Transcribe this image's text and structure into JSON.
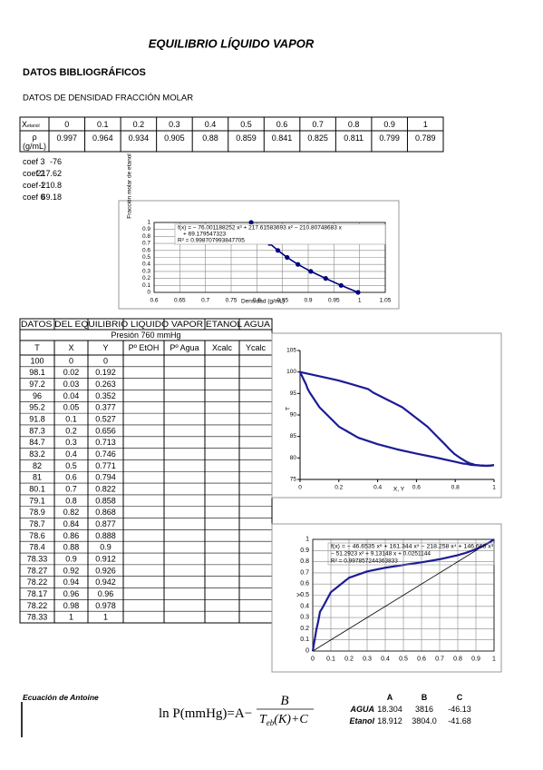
{
  "title": "EQUILIBRIO LÍQUIDO VAPOR",
  "section": "DATOS BIBLIOGRÁFICOS",
  "density": {
    "heading": "DATOS DE DENSIDAD FRACCIÓN MOLAR",
    "x_header": {
      "base": "X",
      "subscript": "etanol"
    },
    "rho_header": [
      "ρ",
      "(g/mL)"
    ],
    "x": [
      0,
      0.1,
      0.2,
      0.3,
      0.4,
      0.5,
      0.6,
      0.7,
      0.8,
      0.9,
      1
    ],
    "rho": [
      0.997,
      0.964,
      0.934,
      0.905,
      0.88,
      0.859,
      0.841,
      0.825,
      0.811,
      0.799,
      0.789
    ]
  },
  "coefficients": [
    {
      "label": "coef 3",
      "value": -76
    },
    {
      "label": "coef 2",
      "value": 217.62
    },
    {
      "label": "coef 1",
      "value": -210.8
    },
    {
      "label": "coef 0",
      "value": 69.18
    }
  ],
  "equilibrium": {
    "title": "DATOS DEL EQUILIBRIO LIQUIDO VAPOR ETANOL AGUA",
    "pressure": "Presión 760 mmHg",
    "columns": [
      "T",
      "X",
      "Y",
      "Pº EtOH",
      "Pº Agua",
      "Xcalc",
      "Ycalc"
    ],
    "rows": [
      [
        100,
        0,
        0
      ],
      [
        98.1,
        0.02,
        0.192
      ],
      [
        97.2,
        0.03,
        0.263
      ],
      [
        96,
        0.04,
        0.352
      ],
      [
        95.2,
        0.05,
        0.377
      ],
      [
        91.8,
        0.1,
        0.527
      ],
      [
        87.3,
        0.2,
        0.656
      ],
      [
        84.7,
        0.3,
        0.713
      ],
      [
        83.2,
        0.4,
        0.746
      ],
      [
        82,
        0.5,
        0.771
      ],
      [
        81,
        0.6,
        0.794
      ],
      [
        80.1,
        0.7,
        0.822
      ],
      [
        79.1,
        0.8,
        0.858
      ],
      [
        78.9,
        0.82,
        0.868
      ],
      [
        78.7,
        0.84,
        0.877
      ],
      [
        78.6,
        0.86,
        0.888
      ],
      [
        78.4,
        0.88,
        0.9
      ],
      [
        78.33,
        0.9,
        0.912
      ],
      [
        78.27,
        0.92,
        0.926
      ],
      [
        78.22,
        0.94,
        0.942
      ],
      [
        78.17,
        0.96,
        0.96
      ],
      [
        78.22,
        0.98,
        0.978
      ],
      [
        78.33,
        1,
        1
      ]
    ]
  },
  "chart_data": [
    {
      "type": "scatter",
      "x_label": "Densidad (g/mL)",
      "y_label": "Fracción molar de etanol",
      "color": "#000080",
      "x": [
        0.997,
        0.964,
        0.934,
        0.905,
        0.88,
        0.859,
        0.841,
        0.825,
        0.811,
        0.799,
        0.789
      ],
      "values": [
        0,
        0.1,
        0.2,
        0.3,
        0.4,
        0.5,
        0.6,
        0.7,
        0.8,
        0.9,
        1
      ],
      "xlim": [
        0.6,
        1.05
      ],
      "xticks": [
        0.6,
        0.65,
        0.7,
        0.75,
        0.8,
        0.85,
        0.9,
        0.95,
        1,
        1.05
      ],
      "ylim": [
        0,
        1
      ],
      "yticks": [
        0,
        0.1,
        0.2,
        0.3,
        0.4,
        0.5,
        0.6,
        0.7,
        0.8,
        0.9,
        1
      ],
      "grid": true,
      "annotation": [
        "f(x) = − 76.001188252 x³ + 217.61583693 x² − 210.80748683 x",
        "+ 69.179547323",
        "R² = 0.998707993847705"
      ]
    },
    {
      "type": "line",
      "x_label": "X, Y",
      "y_label": "T",
      "series": [
        {
          "color": "#1c1c96",
          "x": [
            0,
            0.02,
            0.03,
            0.04,
            0.05,
            0.1,
            0.2,
            0.3,
            0.4,
            0.5,
            0.6,
            0.7,
            0.8,
            0.82,
            0.84,
            0.86,
            0.88,
            0.9,
            0.92,
            0.94,
            0.96,
            0.98,
            1
          ],
          "values": [
            100,
            98.1,
            97.2,
            96,
            95.2,
            91.8,
            87.3,
            84.7,
            83.2,
            82,
            81,
            80.1,
            79.1,
            78.9,
            78.7,
            78.6,
            78.4,
            78.33,
            78.27,
            78.22,
            78.17,
            78.22,
            78.33
          ]
        },
        {
          "color": "#1c1c96",
          "x": [
            0,
            0.192,
            0.263,
            0.352,
            0.377,
            0.527,
            0.656,
            0.713,
            0.746,
            0.771,
            0.794,
            0.822,
            0.858,
            0.868,
            0.877,
            0.888,
            0.9,
            0.912,
            0.926,
            0.942,
            0.96,
            0.978,
            1
          ],
          "values": [
            100,
            98.1,
            97.2,
            96,
            95.2,
            91.8,
            87.3,
            84.7,
            83.2,
            82,
            81,
            80.1,
            79.1,
            78.9,
            78.7,
            78.6,
            78.4,
            78.33,
            78.27,
            78.22,
            78.17,
            78.22,
            78.33
          ]
        }
      ],
      "xlim": [
        0,
        1
      ],
      "xticks": [
        0,
        0.2,
        0.4,
        0.6,
        0.8,
        1
      ],
      "ylim": [
        75,
        105
      ],
      "yticks": [
        75,
        80,
        85,
        90,
        95,
        100,
        105
      ],
      "grid": false
    },
    {
      "type": "line",
      "y_label": "Y",
      "reference_line": true,
      "series": [
        {
          "color": "#1c1c96",
          "x": [
            0,
            0.02,
            0.03,
            0.04,
            0.05,
            0.1,
            0.2,
            0.3,
            0.4,
            0.5,
            0.6,
            0.7,
            0.8,
            0.82,
            0.84,
            0.86,
            0.88,
            0.9,
            0.92,
            0.94,
            0.96,
            0.98,
            1
          ],
          "values": [
            0,
            0.192,
            0.263,
            0.352,
            0.377,
            0.527,
            0.656,
            0.713,
            0.746,
            0.771,
            0.794,
            0.822,
            0.858,
            0.868,
            0.877,
            0.888,
            0.9,
            0.912,
            0.926,
            0.942,
            0.96,
            0.978,
            1
          ]
        }
      ],
      "xlim": [
        0,
        1
      ],
      "xticks": [
        0,
        0.1,
        0.2,
        0.3,
        0.4,
        0.5,
        0.6,
        0.7,
        0.8,
        0.9,
        1
      ],
      "ylim": [
        0,
        1
      ],
      "yticks": [
        0,
        0.1,
        0.2,
        0.3,
        0.4,
        0.5,
        0.6,
        0.7,
        0.8,
        0.9,
        1
      ],
      "grid": true,
      "annotation": [
        "f(x) = − 46.6535 x⁶ + 161.344 x⁵ − 218.258 x⁴ + 146.668 x³",
        "− 51.2923 x² + 9.13148 x + 0.0251144",
        "R² = 0.997857244363833"
      ]
    }
  ],
  "antoine": {
    "label": "Ecuación de Antoine",
    "formula": {
      "lhs": "ln P(mmHg)=A−",
      "numerator": "B",
      "denominator": {
        "base": "T",
        "subscript": "eb",
        "rest": "(K)+C"
      }
    },
    "headers": [
      "A",
      "B",
      "C"
    ],
    "rows": [
      {
        "name": "AGUA",
        "values": [
          "18.304",
          "3816",
          "-46.13"
        ]
      },
      {
        "name": "Etanol",
        "values": [
          "18.912",
          "3804.0",
          "-41.68"
        ]
      }
    ]
  }
}
